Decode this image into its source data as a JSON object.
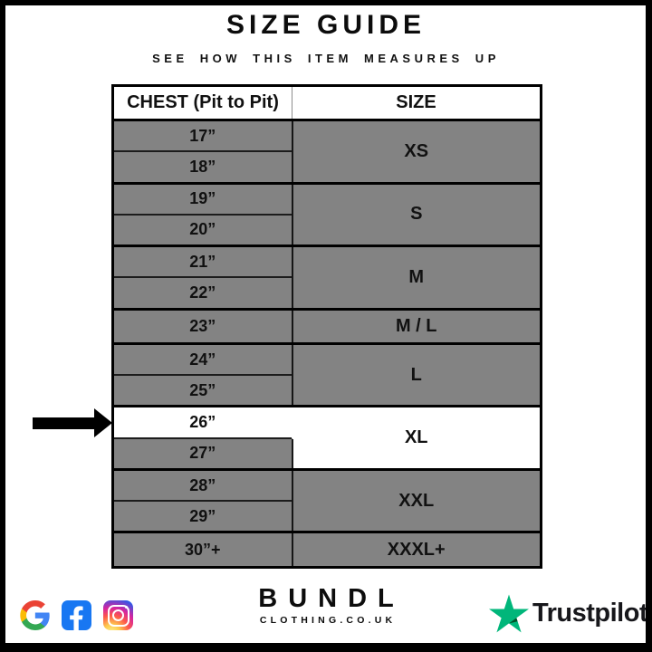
{
  "page": {
    "title": "SIZE GUIDE",
    "subtitle": "SEE HOW THIS ITEM MEASURES UP"
  },
  "table": {
    "columns": [
      "CHEST (Pit to Pit)",
      "SIZE"
    ],
    "groups": [
      {
        "size": "XS",
        "measurements": [
          "17”",
          "18”"
        ],
        "highlighted": false
      },
      {
        "size": "S",
        "measurements": [
          "19”",
          "20”"
        ],
        "highlighted": false
      },
      {
        "size": "M",
        "measurements": [
          "21”",
          "22”"
        ],
        "highlighted": false
      },
      {
        "size": "M / L",
        "measurements": [
          "23”"
        ],
        "highlighted": false
      },
      {
        "size": "L",
        "measurements": [
          "24”",
          "25”"
        ],
        "highlighted": false
      },
      {
        "size": "XL",
        "measurements": [
          "26”",
          "27”"
        ],
        "highlighted": true,
        "highlighted_measurement": "26”"
      },
      {
        "size": "XXL",
        "measurements": [
          "28”",
          "29”"
        ],
        "highlighted": false
      },
      {
        "size": "XXXL+",
        "measurements": [
          "30”+"
        ],
        "highlighted": false
      }
    ],
    "arrow_points_at": "26”"
  },
  "chart_data": {
    "type": "table",
    "title": "SIZE GUIDE",
    "subtitle": "SEE HOW THIS ITEM MEASURES UP",
    "columns": [
      "CHEST (Pit to Pit)",
      "SIZE"
    ],
    "rows": [
      [
        "17”",
        "XS"
      ],
      [
        "18”",
        "XS"
      ],
      [
        "19”",
        "S"
      ],
      [
        "20”",
        "S"
      ],
      [
        "21”",
        "M"
      ],
      [
        "22”",
        "M"
      ],
      [
        "23”",
        "M / L"
      ],
      [
        "24”",
        "L"
      ],
      [
        "25”",
        "L"
      ],
      [
        "26”",
        "XL"
      ],
      [
        "27”",
        "XL"
      ],
      [
        "28”",
        "XXL"
      ],
      [
        "29”",
        "XXL"
      ],
      [
        "30”+",
        "XXXL+"
      ]
    ],
    "highlighted_row": "26”",
    "highlight_meaning": "arrow indicator marks this item's measurement"
  },
  "footer": {
    "social_icons": [
      "google-icon",
      "facebook-icon",
      "instagram-icon"
    ],
    "brand": {
      "name": "BUNDL",
      "tagline": "CLOTHING.CO.UK"
    },
    "trustpilot_label": "Trustpilot"
  },
  "colors": {
    "row_gray": "#838383",
    "highlight_white": "#ffffff",
    "border_black": "#000000",
    "facebook_blue": "#1877F2",
    "trustpilot_green": "#00B67A",
    "trustpilot_dark_green": "#005128",
    "google_blue": "#4285F4",
    "google_green": "#34A853",
    "google_yellow": "#FBBC05",
    "google_red": "#EA4335"
  }
}
